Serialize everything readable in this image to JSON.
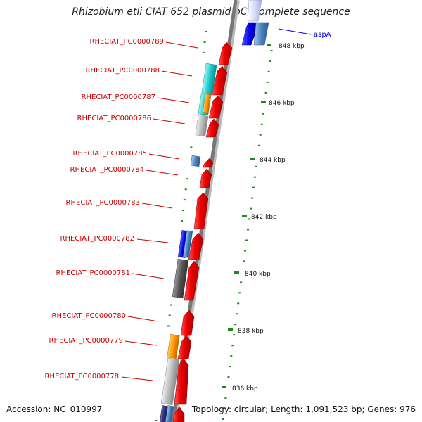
{
  "title": "Rhizobium etli CIAT 652 plasmid pC, complete sequence",
  "accession_label": "Accession: NC_010997",
  "summary_label": "Topology: circular; Length: 1,091,523 bp; Genes: 976",
  "ticks": [
    "848 kbp",
    "846 kbp",
    "844 kbp",
    "842 kbp",
    "840 kbp",
    "838 kbp",
    "836 kbp"
  ],
  "gene_labels": [
    "RHECIAT_PC0000789",
    "RHECIAT_PC0000788",
    "RHECIAT_PC0000787",
    "RHECIAT_PC0000786",
    "RHECIAT_PC0000785",
    "RHECIAT_PC0000784",
    "RHECIAT_PC0000783",
    "RHECIAT_PC0000782",
    "RHECIAT_PC0000781",
    "RHECIAT_PC0000780",
    "RHECIAT_PC0000779",
    "RHECIAT_PC0000778"
  ],
  "outer_label": "aspA",
  "colors": {
    "cds": "#ee0000",
    "label_red": "#cc0000",
    "label_blue": "#0000dd",
    "dots": "#1a8a1a",
    "backbone": "#777777"
  }
}
